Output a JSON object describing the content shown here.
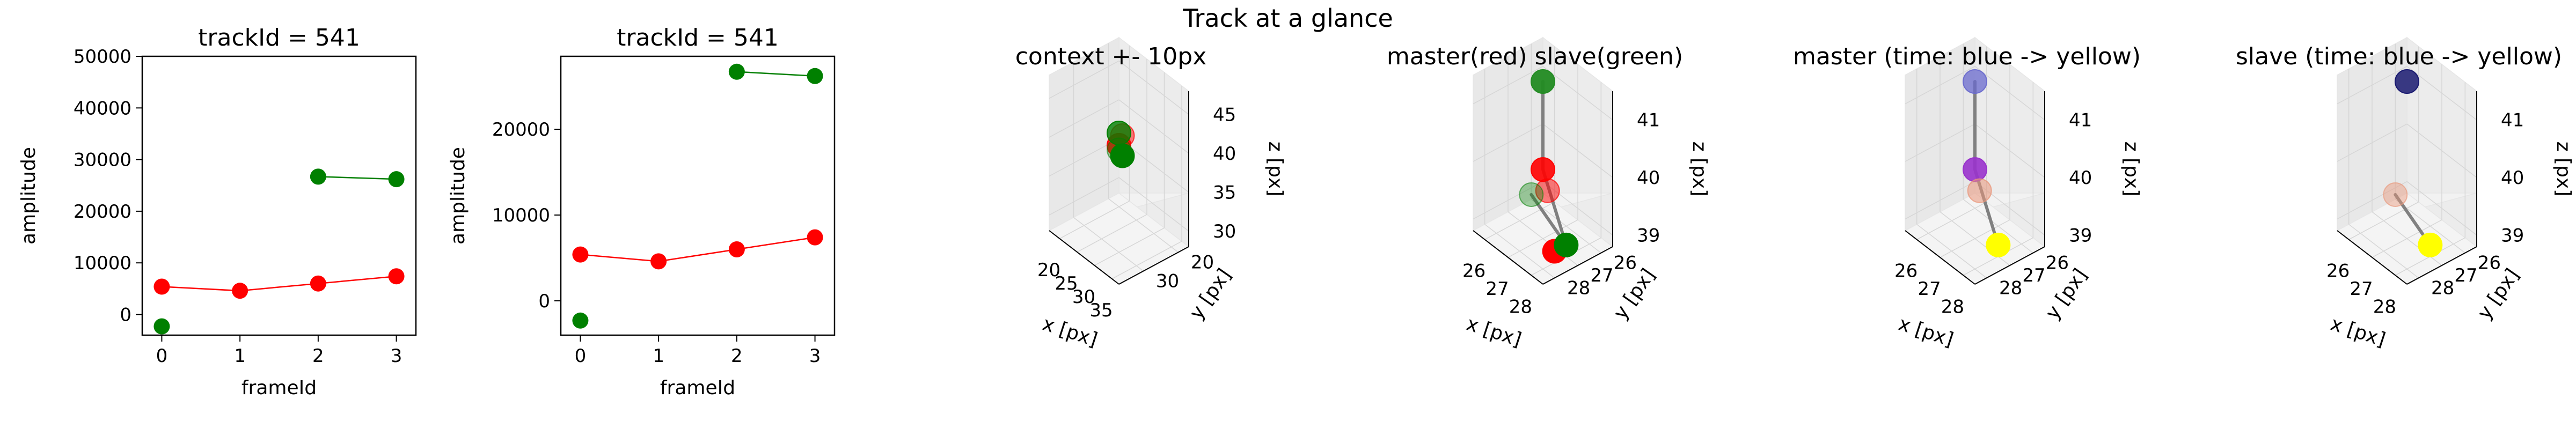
{
  "suptitle": "Track at a glance",
  "chart_data": [
    {
      "type": "line",
      "title": "trackId = 541",
      "xlabel": "frameId",
      "ylabel": "amplitude",
      "xlim": [
        -0.25,
        3.25
      ],
      "ylim": [
        -4000,
        50000
      ],
      "xticks": [
        0,
        1,
        2,
        3
      ],
      "yticks": [
        0,
        10000,
        20000,
        30000,
        40000,
        50000
      ],
      "series": [
        {
          "color": "#ff0000",
          "x": [
            0,
            1,
            2,
            3
          ],
          "y": [
            5400,
            4600,
            6000,
            7400
          ]
        },
        {
          "color": "#008000",
          "x": [
            0
          ],
          "y": [
            -2300
          ]
        },
        {
          "color": "#008000",
          "x": [
            2,
            3
          ],
          "y": [
            26700,
            26200
          ]
        }
      ]
    },
    {
      "type": "line",
      "title": "trackId = 541",
      "xlabel": "frameId",
      "ylabel": "amplitude",
      "xlim": [
        -0.25,
        3.25
      ],
      "ylim": [
        -4000,
        28500
      ],
      "xticks": [
        0,
        1,
        2,
        3
      ],
      "yticks": [
        0,
        10000,
        20000
      ],
      "series": [
        {
          "color": "#ff0000",
          "x": [
            0,
            1,
            2,
            3
          ],
          "y": [
            5400,
            4600,
            6000,
            7400
          ]
        },
        {
          "color": "#008000",
          "x": [
            0
          ],
          "y": [
            -2300
          ]
        },
        {
          "color": "#008000",
          "x": [
            2,
            3
          ],
          "y": [
            26700,
            26200
          ]
        }
      ]
    },
    {
      "type": "scatter",
      "title": "context +- 10px",
      "xlabel": "x [px]",
      "ylabel": "y [px]",
      "zlabel": "z [px]",
      "xlim": [
        17,
        37
      ],
      "ylim": [
        17,
        37
      ],
      "zlim": [
        28,
        48
      ],
      "xticks": [
        20,
        25,
        30,
        35
      ],
      "yticks": [
        20,
        30
      ],
      "zticks": [
        30,
        35,
        40,
        45
      ],
      "points": [
        {
          "x": 27,
          "y": 27,
          "z": 40,
          "color": "#ff0000",
          "alpha": 0.9
        },
        {
          "x": 27,
          "y": 26,
          "z": 41,
          "color": "#ff0000",
          "alpha": 0.5
        },
        {
          "x": 26,
          "y": 26,
          "z": 41,
          "color": "#008000",
          "alpha": 0.8
        },
        {
          "x": 28,
          "y": 27,
          "z": 39,
          "color": "#008000",
          "alpha": 1.0
        },
        {
          "x": 28,
          "y": 28,
          "z": 40,
          "color": "#008000",
          "alpha": 0.35
        }
      ]
    },
    {
      "type": "scatter",
      "title": "master(red) slave(green)",
      "xlabel": "x [px]",
      "ylabel": "y [px]",
      "zlabel": "z [px]",
      "xlim": [
        25.5,
        28.5
      ],
      "ylim": [
        25.5,
        28.5
      ],
      "zlim": [
        38.8,
        41.5
      ],
      "xticks": [
        26,
        27,
        28
      ],
      "yticks": [
        26,
        27,
        28
      ],
      "zticks": [
        39,
        40,
        41
      ],
      "points": [
        {
          "x": 26,
          "y": 26,
          "z": 41,
          "color": "#228b22",
          "alpha": 0.95
        },
        {
          "x": 27,
          "y": 27,
          "z": 40,
          "color": "#ff0000",
          "alpha": 0.9
        },
        {
          "x": 27.4,
          "y": 27.2,
          "z": 39.8,
          "color": "#ff0000",
          "alpha": 0.5
        },
        {
          "x": 28,
          "y": 27.5,
          "z": 39,
          "color": "#ff0000",
          "alpha": 1.0
        },
        {
          "x": 28,
          "y": 27,
          "z": 39,
          "color": "#008000",
          "alpha": 1.0
        },
        {
          "x": 28,
          "y": 28.5,
          "z": 40.2,
          "color": "#008000",
          "alpha": 0.35
        }
      ],
      "lines": [
        [
          0,
          1
        ],
        [
          1,
          4
        ],
        [
          4,
          5
        ]
      ]
    },
    {
      "type": "scatter",
      "title": "master (time: blue -> yellow)",
      "xlabel": "x [px]",
      "ylabel": "y [px]",
      "zlabel": "z [px]",
      "xlim": [
        25.5,
        28.5
      ],
      "ylim": [
        25.5,
        28.5
      ],
      "zlim": [
        38.8,
        41.5
      ],
      "xticks": [
        26,
        27,
        28
      ],
      "yticks": [
        26,
        27,
        28
      ],
      "zticks": [
        39,
        40,
        41
      ],
      "points": [
        {
          "x": 26,
          "y": 26,
          "z": 41,
          "color": "#6a6acd",
          "alpha": 0.75
        },
        {
          "x": 27,
          "y": 27,
          "z": 40,
          "color": "#9932cc",
          "alpha": 0.9
        },
        {
          "x": 27.4,
          "y": 27.2,
          "z": 39.8,
          "color": "#e9967a",
          "alpha": 0.55
        },
        {
          "x": 28,
          "y": 27,
          "z": 39,
          "color": "#ffff00",
          "alpha": 1.0
        }
      ],
      "lines": [
        [
          0,
          1
        ],
        [
          1,
          3
        ]
      ]
    },
    {
      "type": "scatter",
      "title": "slave (time: blue -> yellow)",
      "xlabel": "x [px]",
      "ylabel": "y [px]",
      "zlabel": "z [px]",
      "xlim": [
        25.5,
        28.5
      ],
      "ylim": [
        25.5,
        28.5
      ],
      "zlim": [
        38.8,
        41.5
      ],
      "xticks": [
        26,
        27,
        28
      ],
      "yticks": [
        26,
        27,
        28
      ],
      "zticks": [
        39,
        40,
        41
      ],
      "points": [
        {
          "x": 26,
          "y": 26,
          "z": 41,
          "color": "#191970",
          "alpha": 0.85
        },
        {
          "x": 28,
          "y": 27,
          "z": 39,
          "color": "#ffff00",
          "alpha": 1.0
        },
        {
          "x": 28,
          "y": 28.5,
          "z": 40.2,
          "color": "#e9967a",
          "alpha": 0.45
        }
      ],
      "lines": [
        [
          1,
          2
        ]
      ]
    }
  ]
}
